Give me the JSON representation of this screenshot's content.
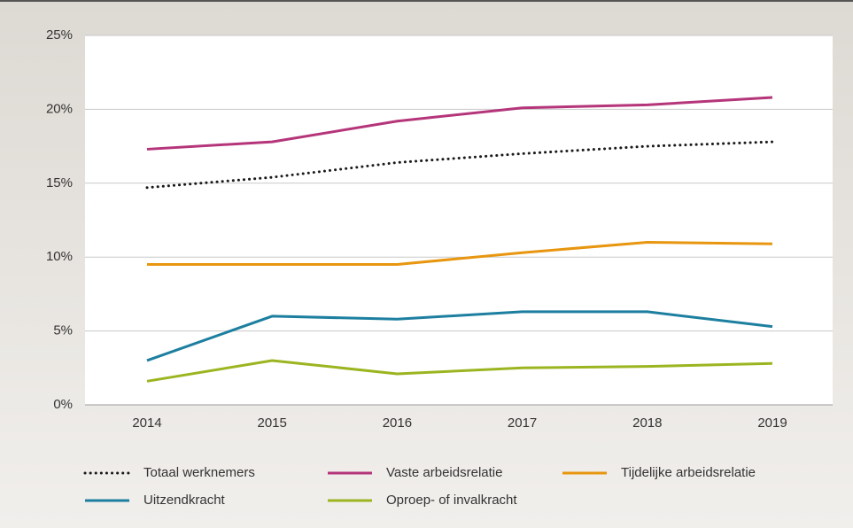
{
  "chart_data": {
    "type": "line",
    "categories": [
      "2014",
      "2015",
      "2016",
      "2017",
      "2018",
      "2019"
    ],
    "series": [
      {
        "name": "Totaal werknemers",
        "color": "#1a1a1a",
        "dashed": true,
        "values": [
          14.7,
          15.4,
          16.4,
          17.0,
          17.5,
          17.8
        ]
      },
      {
        "name": "Vaste arbeidsrelatie",
        "color": "#b5357a",
        "values": [
          17.3,
          17.8,
          19.2,
          20.1,
          20.3,
          20.8
        ]
      },
      {
        "name": "Tijdelijke arbeidsrelatie",
        "color": "#e8960f",
        "values": [
          9.5,
          9.5,
          9.5,
          10.3,
          11.0,
          10.9
        ]
      },
      {
        "name": "Uitzendkracht",
        "color": "#1d7fa0",
        "values": [
          3.0,
          6.0,
          5.8,
          6.3,
          6.3,
          5.3
        ]
      },
      {
        "name": "Oproep- of invalkracht",
        "color": "#9bb520",
        "values": [
          1.6,
          3.0,
          2.1,
          2.5,
          2.6,
          2.8
        ]
      }
    ],
    "ylim": [
      0,
      25
    ],
    "yticks": [
      {
        "value": 0,
        "label": "0%"
      },
      {
        "value": 5,
        "label": "5%"
      },
      {
        "value": 10,
        "label": "10%"
      },
      {
        "value": 15,
        "label": "15%"
      },
      {
        "value": 20,
        "label": "20%"
      },
      {
        "value": 25,
        "label": "25%"
      }
    ],
    "grid": true
  }
}
